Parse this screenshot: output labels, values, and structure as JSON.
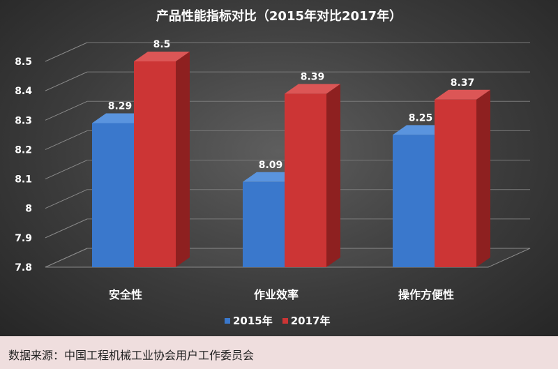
{
  "chart_data": {
    "type": "bar",
    "title": "产品性能指标对比（2015年对比2017年）",
    "categories": [
      "安全性",
      "作业效率",
      "操作方便性"
    ],
    "series": [
      {
        "name": "2015年",
        "values": [
          8.29,
          8.09,
          8.25
        ],
        "color": "#3a78cc"
      },
      {
        "name": "2017年",
        "values": [
          8.5,
          8.39,
          8.37
        ],
        "color": "#cc3535"
      }
    ],
    "yticks": [
      "7.8",
      "7.9",
      "8",
      "8.1",
      "8.2",
      "8.3",
      "8.4",
      "8.5"
    ],
    "ylim": [
      7.8,
      8.5
    ],
    "grid": true,
    "legend_position": "bottom"
  },
  "source": "数据来源：中国工程机械工业协会用户工作委员会"
}
